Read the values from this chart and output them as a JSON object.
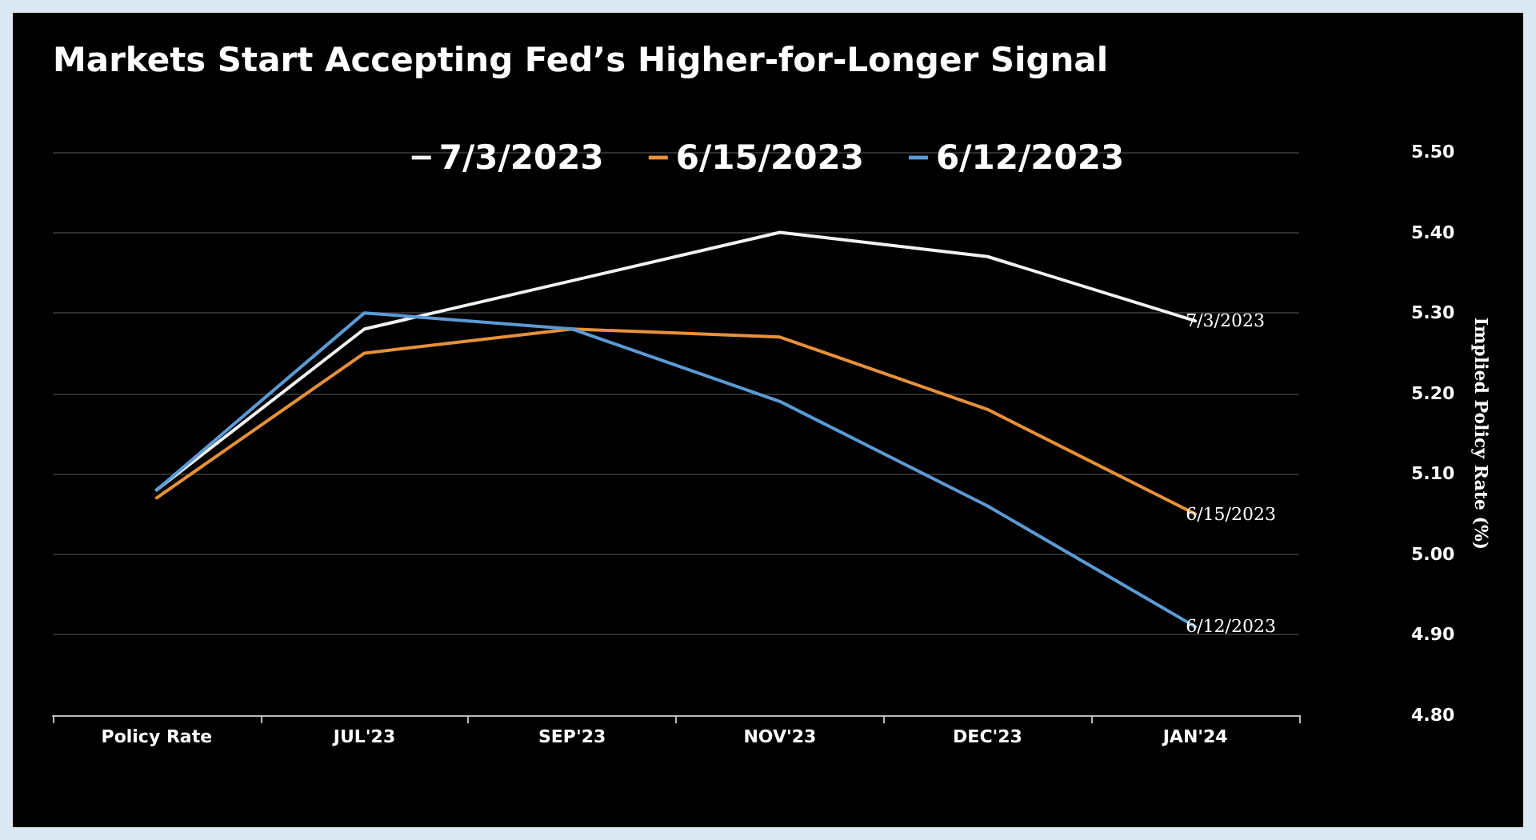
{
  "chart_data": {
    "type": "line",
    "title": "Markets Start Accepting Fed’s Higher-for-Longer Signal",
    "ylabel": "Implied Policy Rate (%)",
    "categories": [
      "Policy Rate",
      "JUL'23",
      "SEP'23",
      "NOV'23",
      "DEC'23",
      "JAN'24"
    ],
    "series": [
      {
        "name": "7/3/2023",
        "color": "#f2f2f2",
        "values": [
          5.08,
          5.28,
          5.34,
          5.4,
          5.37,
          5.29
        ]
      },
      {
        "name": "6/15/2023",
        "color": "#e8913a",
        "values": [
          5.07,
          5.25,
          5.28,
          5.27,
          5.18,
          5.05
        ]
      },
      {
        "name": "6/12/2023",
        "color": "#5b9bd5",
        "values": [
          5.08,
          5.3,
          5.28,
          5.19,
          5.06,
          4.91
        ]
      }
    ],
    "ylim": [
      4.8,
      5.5
    ],
    "yticks": [
      {
        "value": 4.8,
        "label": "4.80"
      },
      {
        "value": 4.9,
        "label": "4.90"
      },
      {
        "value": 5.0,
        "label": "5.00"
      },
      {
        "value": 5.1,
        "label": "5.10"
      },
      {
        "value": 5.2,
        "label": "5.20"
      },
      {
        "value": 5.3,
        "label": "5.30"
      },
      {
        "value": 5.4,
        "label": "5.40"
      },
      {
        "value": 5.5,
        "label": "5.50"
      }
    ],
    "grid": "y",
    "legend": "top",
    "marker": "none",
    "line_style": "solid"
  }
}
